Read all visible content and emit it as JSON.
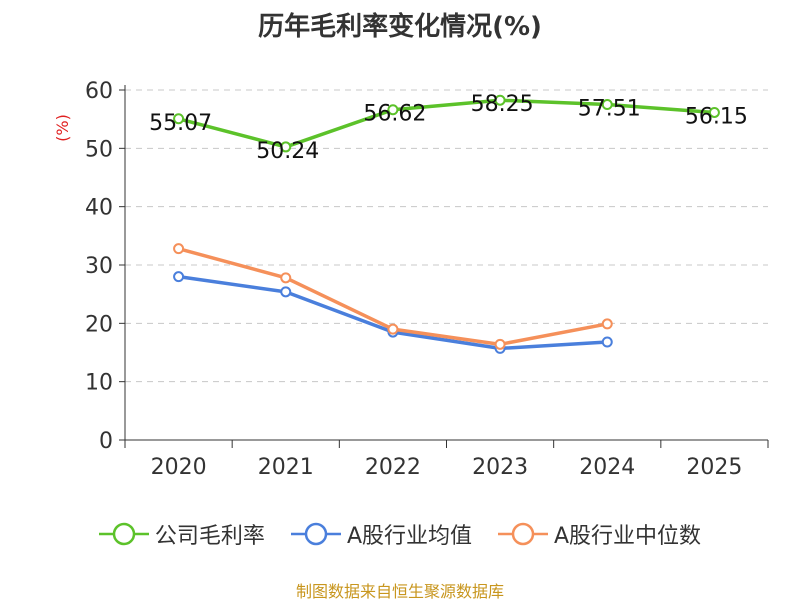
{
  "chart_data": {
    "type": "line",
    "title": "历年毛利率变化情况(%)",
    "ylabel": "(%)",
    "xlabel": "",
    "ylim": [
      0,
      60
    ],
    "yticks": [
      0,
      10,
      20,
      30,
      40,
      50,
      60
    ],
    "categories": [
      "2020",
      "2021",
      "2022",
      "2023",
      "2024",
      "2025"
    ],
    "grid": true,
    "legend_position": "bottom",
    "series": [
      {
        "name": "公司毛利率",
        "color": "#5cc22a",
        "values": [
          55.07,
          50.24,
          56.62,
          58.25,
          57.51,
          56.15
        ],
        "labels": [
          "55.07",
          "50.24",
          "56.62",
          "58.25",
          "57.51",
          "56.15"
        ]
      },
      {
        "name": "A股行业均值",
        "color": "#4a7fdc",
        "values": [
          28.0,
          25.4,
          18.5,
          15.7,
          16.8,
          null
        ]
      },
      {
        "name": "A股行业中位数",
        "color": "#f5905a",
        "values": [
          32.8,
          27.8,
          19.0,
          16.4,
          19.9,
          null
        ]
      }
    ]
  },
  "source": "制图数据来自恒生聚源数据库"
}
